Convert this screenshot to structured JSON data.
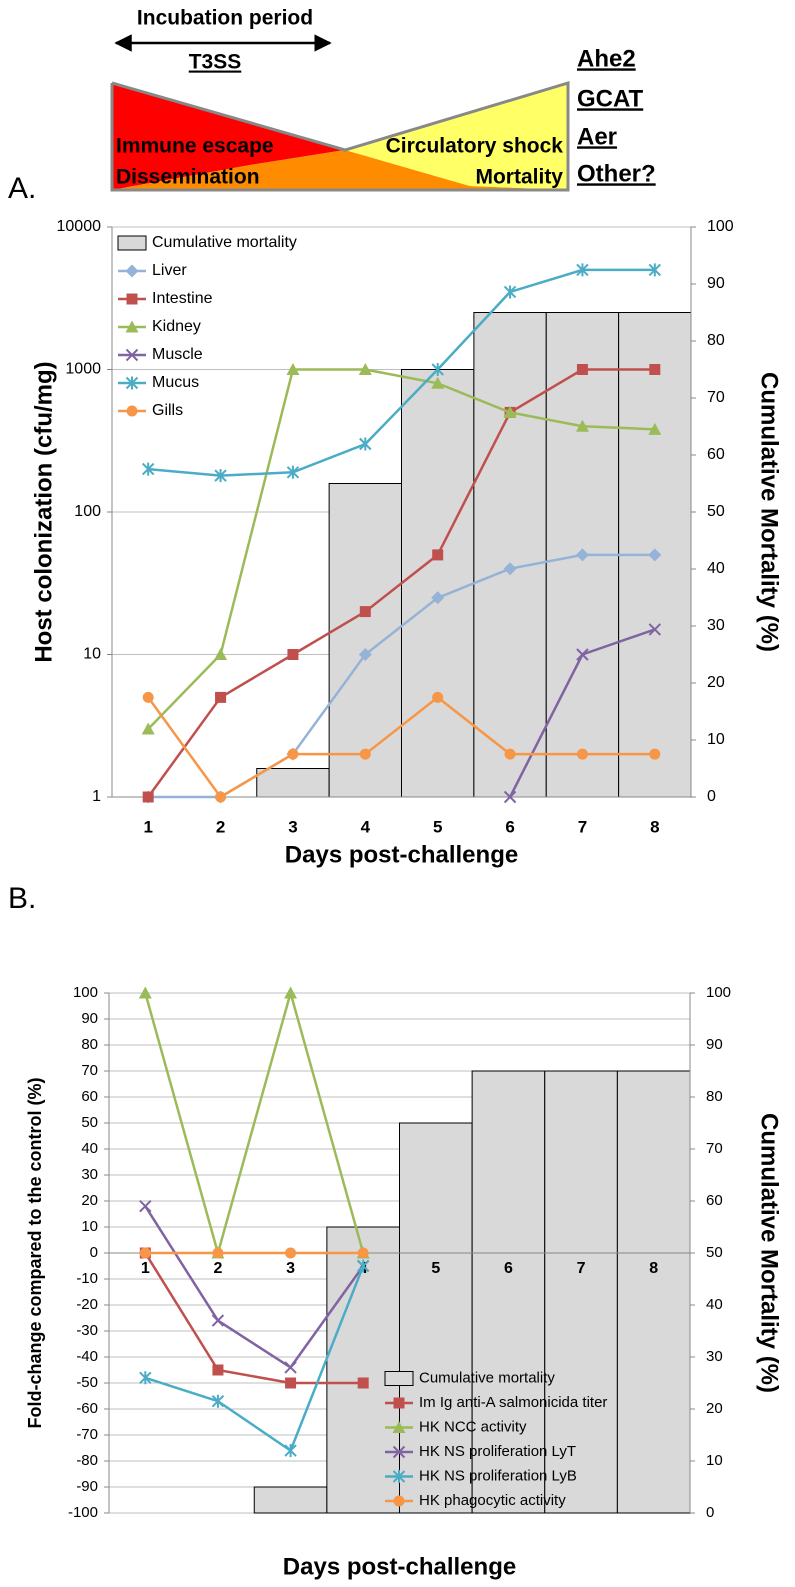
{
  "diagram": {
    "top_label": "Incubation period",
    "arrow_label": "T3SS",
    "regions": [
      "Immune escape",
      "Dissemination",
      "Circulatory shock",
      "Mortality"
    ],
    "factors": [
      "Ahe2",
      "GCAT",
      "Aer",
      "Other?"
    ]
  },
  "chart_data": [
    {
      "type": "bar_line",
      "panel_label": "A.",
      "xlabel": "Days post-challenge",
      "ylabel": "Host colonization (cfu/mg)",
      "y2label": "Cumulative Mortality (%)",
      "categories": [
        "1",
        "2",
        "3",
        "4",
        "5",
        "6",
        "7",
        "8"
      ],
      "ylog": true,
      "ylim": [
        1,
        10000
      ],
      "yticks": [
        1,
        10,
        100,
        1000,
        10000
      ],
      "y2lim": [
        0,
        100
      ],
      "y2ticks": [
        0,
        10,
        20,
        30,
        40,
        50,
        60,
        70,
        80,
        90,
        100
      ],
      "grid": true,
      "legend": "upper left",
      "x_tick_position": "bottom",
      "series": [
        {
          "name": "Cumulative mortality",
          "type": "bar",
          "axis": "y2",
          "color": "#d9d9d9",
          "values": [
            0,
            0,
            5,
            55,
            75,
            85,
            85,
            85
          ]
        },
        {
          "name": "Liver",
          "type": "line",
          "marker": "diamond",
          "color": "#95b3d7",
          "values": [
            1,
            1,
            2,
            10,
            25,
            40,
            50,
            50
          ]
        },
        {
          "name": "Intestine",
          "type": "line",
          "marker": "square",
          "color": "#c0504d",
          "values": [
            1,
            5,
            10,
            20,
            50,
            500,
            1000,
            1000
          ]
        },
        {
          "name": "Kidney",
          "type": "line",
          "marker": "triangle",
          "color": "#9bbb59",
          "values": [
            3,
            10,
            1000,
            1000,
            800,
            500,
            400,
            380
          ]
        },
        {
          "name": "Muscle",
          "type": "line",
          "marker": "x",
          "color": "#8064a2",
          "values": [
            null,
            null,
            null,
            null,
            null,
            1,
            10,
            15
          ]
        },
        {
          "name": "Mucus",
          "type": "line",
          "marker": "asterisk",
          "color": "#4bacc6",
          "values": [
            200,
            180,
            190,
            300,
            1000,
            3500,
            5000,
            5000
          ]
        },
        {
          "name": "Gills",
          "type": "line",
          "marker": "circle",
          "color": "#f79646",
          "values": [
            5,
            1,
            2,
            2,
            5,
            2,
            2,
            2
          ]
        }
      ]
    },
    {
      "type": "bar_line",
      "panel_label": "B.",
      "xlabel": "Days post-challenge",
      "ylabel": "Fold-change compared to the control (%)",
      "y2label": "Cumulative Mortality (%)",
      "categories": [
        "1",
        "2",
        "3",
        "4",
        "5",
        "6",
        "7",
        "8"
      ],
      "ylog": false,
      "ylim": [
        -100,
        100
      ],
      "yticks": [
        -100,
        -90,
        -80,
        -70,
        -60,
        -50,
        -40,
        -30,
        -20,
        -10,
        0,
        10,
        20,
        30,
        40,
        50,
        60,
        70,
        80,
        90,
        100
      ],
      "y2lim": [
        0,
        100
      ],
      "y2ticks": [
        0,
        10,
        20,
        30,
        40,
        50,
        60,
        70,
        80,
        90,
        100
      ],
      "grid": true,
      "legend": "lower right",
      "x_tick_position": "zero",
      "series": [
        {
          "name": "Cumulative mortality",
          "type": "bar",
          "axis": "y2",
          "color": "#d9d9d9",
          "values": [
            0,
            0,
            5,
            55,
            75,
            85,
            85,
            85
          ]
        },
        {
          "name": "Im Ig anti-A salmonicida titer",
          "type": "line",
          "marker": "square",
          "color": "#c0504d",
          "values": [
            0,
            -45,
            -50,
            -50,
            null,
            null,
            null,
            null
          ]
        },
        {
          "name": "HK NCC activity",
          "type": "line",
          "marker": "triangle",
          "color": "#9bbb59",
          "values": [
            100,
            0,
            100,
            0,
            null,
            null,
            null,
            null
          ]
        },
        {
          "name": "HK NS proliferation LyT",
          "type": "line",
          "marker": "x",
          "color": "#8064a2",
          "values": [
            18,
            -26,
            -44,
            -5,
            null,
            null,
            null,
            null
          ]
        },
        {
          "name": "HK NS proliferation LyB",
          "type": "line",
          "marker": "asterisk",
          "color": "#4bacc6",
          "values": [
            -48,
            -57,
            -76,
            -5,
            null,
            null,
            null,
            null
          ]
        },
        {
          "name": "HK phagocytic activity",
          "type": "line",
          "marker": "circle",
          "color": "#f79646",
          "values": [
            0,
            0,
            0,
            0,
            null,
            null,
            null,
            null
          ]
        }
      ]
    }
  ]
}
